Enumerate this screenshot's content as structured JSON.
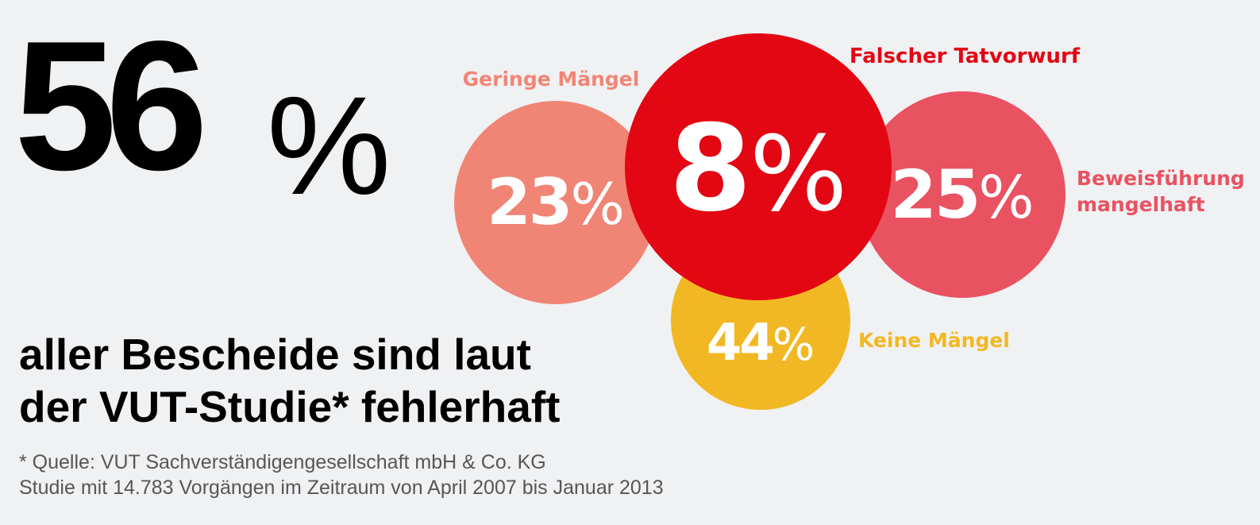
{
  "headline": {
    "value": "56",
    "unit": "%"
  },
  "subtitle": {
    "line1": "aller Bescheide sind laut",
    "line2": "der VUT-Studie* fehlerhaft"
  },
  "source": {
    "line1": "* Quelle: VUT Sachverständigengesellschaft mbH & Co. KG",
    "line2": "Studie mit 14.783 Vorgängen im Zeitraum von April 2007 bis Januar 2013"
  },
  "chart_data": {
    "type": "bubble",
    "unit": "%",
    "categories": [
      "Geringe Mängel",
      "Falscher Tatvorwurf",
      "Beweisführung mangelhaft",
      "Keine Mängel"
    ],
    "values": [
      23,
      8,
      25,
      44
    ],
    "colors": [
      "#f08576",
      "#e30613",
      "#e95261",
      "#f2b823"
    ],
    "series": [
      {
        "name": "Geringe Mängel",
        "value": 23,
        "color": "#f08576"
      },
      {
        "name": "Falscher Tatvorwurf",
        "value": 8,
        "color": "#e30613"
      },
      {
        "name": "Beweisführung mangelhaft",
        "value": 25,
        "color": "#e95261"
      },
      {
        "name": "Keine Mängel",
        "value": 44,
        "color": "#f2b823"
      }
    ]
  }
}
